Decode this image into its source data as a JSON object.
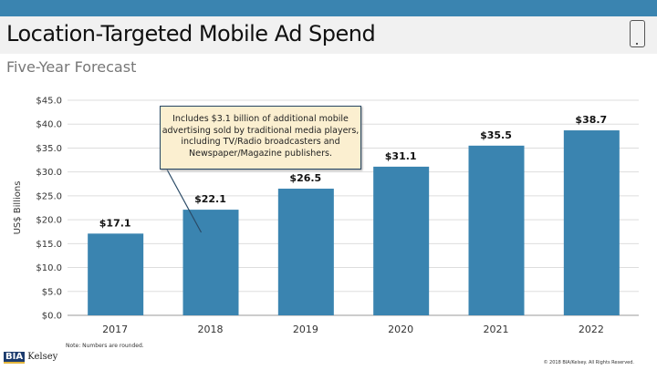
{
  "header": {
    "title": "Location-Targeted Mobile Ad Spend",
    "subtitle": "Five-Year Forecast",
    "icon": "mobile-phone-icon"
  },
  "colors": {
    "bar": "#3a84b0",
    "topbar": "#3a84b0",
    "callout_bg": "#fbefd0"
  },
  "chart_data": {
    "type": "bar",
    "categories": [
      "2017",
      "2018",
      "2019",
      "2020",
      "2021",
      "2022"
    ],
    "values": [
      17.1,
      22.1,
      26.5,
      31.1,
      35.5,
      38.7
    ],
    "data_labels": [
      "$17.1",
      "$22.1",
      "$26.5",
      "$31.1",
      "$35.5",
      "$38.7"
    ],
    "ylabel": "US$ Billions",
    "ylim": [
      0,
      45
    ],
    "yticks": [
      "$0.0",
      "$5.0",
      "$10.0",
      "$15.0",
      "$20.0",
      "$25.0",
      "$30.0",
      "$35.0",
      "$40.0",
      "$45.0"
    ],
    "grid": true,
    "annotation": "Includes $3.1 billion of additional mobile advertising sold by traditional media players, including TV/Radio broadcasters and Newspaper/Magazine publishers.",
    "annotation_target": "2018"
  },
  "footer": {
    "note": "Note: Numbers are rounded.",
    "logo_a": "BIA",
    "logo_b": "Kelsey",
    "copyright": "© 2018 BIA/Kelsey. All Rights Reserved."
  }
}
